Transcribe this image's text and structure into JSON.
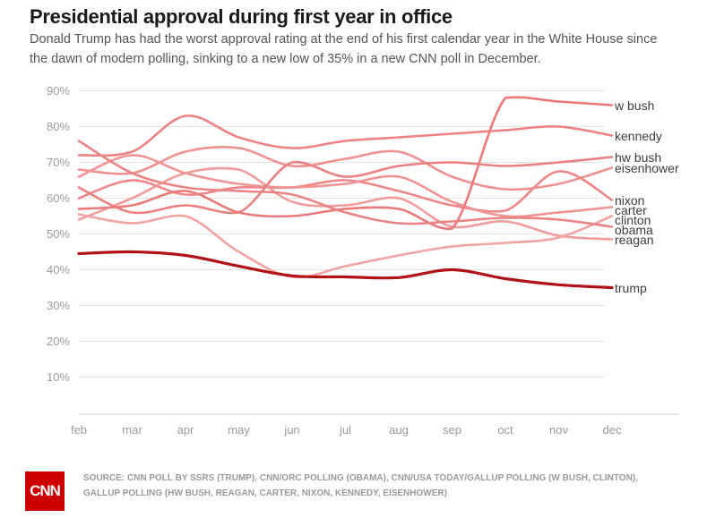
{
  "header": {
    "title": "Presidential approval during first year in office",
    "subtitle": "Donald Trump has had the worst approval rating at the end of his first calendar year in the White House since the dawn of modern polling, sinking to a new low of 35% in a new CNN poll in December."
  },
  "chart_data": {
    "type": "line",
    "title": "Presidential approval during first year in office",
    "x": [
      "feb",
      "mar",
      "apr",
      "may",
      "jun",
      "jul",
      "aug",
      "sep",
      "oct",
      "nov",
      "dec"
    ],
    "yticks": [
      90,
      80,
      70,
      60,
      50,
      40,
      30,
      20,
      10
    ],
    "ytick_suffix": "%",
    "ylim": [
      0,
      95
    ],
    "grid": true,
    "legend_position": "right",
    "series": [
      {
        "name": "eisenhower",
        "label": "eisenhower",
        "color": "#ef9090",
        "values": [
          68,
          67,
          73,
          74,
          69,
          71,
          73,
          66,
          62.5,
          64,
          68.5
        ]
      },
      {
        "name": "kennedy",
        "label": "kennedy",
        "color": "#ee8282",
        "values": [
          72,
          73,
          83,
          77,
          74,
          76,
          77,
          78,
          79,
          80,
          77.5
        ]
      },
      {
        "name": "nixon",
        "label": "nixon",
        "color": "#ed8686",
        "values": [
          60,
          65,
          61,
          63,
          63,
          65,
          62,
          58,
          56.5,
          67.5,
          59.5
        ]
      },
      {
        "name": "carter",
        "label": "carter",
        "color": "#f09393",
        "values": [
          66,
          72,
          67,
          64,
          63,
          64,
          66,
          59,
          55,
          56,
          57.5
        ]
      },
      {
        "name": "reagan",
        "label": "reagan",
        "color": "#f19c9c",
        "values": [
          54,
          60,
          67,
          68,
          59,
          58,
          60,
          52,
          53.5,
          49.5,
          48.5
        ]
      },
      {
        "name": "hw-bush",
        "label": "hw bush",
        "color": "#eb8080",
        "values": [
          63,
          56,
          58,
          56,
          70,
          66,
          69,
          70,
          69,
          70,
          71.5
        ]
      },
      {
        "name": "clinton",
        "label": "clinton",
        "color": "#f2a2a2",
        "values": [
          55.5,
          53,
          55,
          45,
          38,
          41,
          44,
          46.5,
          47.5,
          49,
          55
        ]
      },
      {
        "name": "w-bush",
        "label": "w bush",
        "color": "#ec7979",
        "values": [
          57,
          58,
          62,
          56,
          55,
          57,
          57,
          51.5,
          88,
          87,
          86
        ]
      },
      {
        "name": "obama",
        "label": "obama",
        "color": "#ea8383",
        "values": [
          76,
          67,
          63,
          62,
          61,
          56,
          53,
          53.5,
          54.5,
          54,
          52
        ]
      },
      {
        "name": "trump",
        "label": "trump",
        "color": "#b01217",
        "values": [
          44.5,
          45,
          44,
          41,
          38.3,
          38,
          37.8,
          40,
          37.5,
          35.8,
          35
        ],
        "emphasis": true
      }
    ]
  },
  "footer": {
    "logo": "CNN",
    "source": "SOURCE: CNN POLL BY SSRS (TRUMP), CNN/ORC POLLING (OBAMA), CNN/USA TODAY/GALLUP POLLING (W BUSH, CLINTON), GALLUP POLLING (HW BUSH, REAGAN, CARTER, NIXON, KENNEDY, EISENHOWER)"
  },
  "colors": {
    "brand_red": "#cc0000",
    "trump_line": "#b01217",
    "default_line": "#ee8585",
    "grid_line": "#e2e2e2",
    "axis_line": "#cccccc",
    "title_text": "#1a1a1a",
    "subtitle_text": "#555555",
    "tick_text": "#9a9a9a"
  }
}
